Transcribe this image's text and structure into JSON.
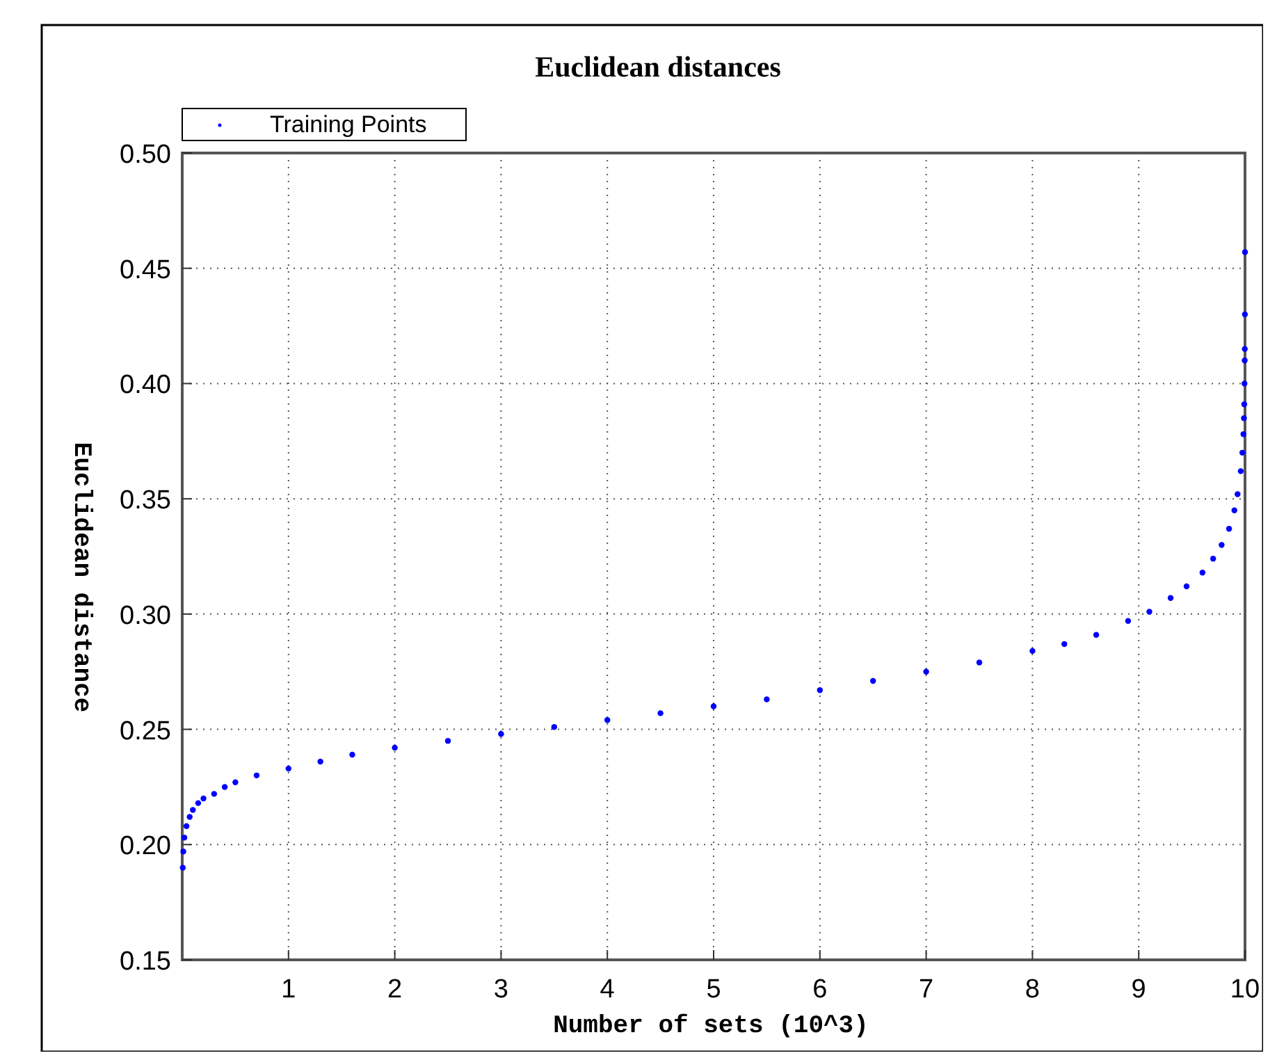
{
  "chart_data": {
    "type": "scatter",
    "title": "Euclidean distances",
    "xlabel": "Number of sets (10^3)",
    "ylabel": "Euclidean distance",
    "xlim": [
      0,
      10
    ],
    "xticks": [
      1,
      2,
      3,
      4,
      5,
      6,
      7,
      8,
      9,
      10
    ],
    "ylim": [
      0.15,
      0.5
    ],
    "yticks": [
      0.15,
      {
        "value": 0.2,
        "label": "0.20"
      },
      0.25,
      {
        "value": 0.3,
        "label": "0.30"
      },
      0.35,
      {
        "value": 0.4,
        "label": "0.40"
      },
      0.45,
      {
        "value": 0.5,
        "label": "0.50"
      }
    ],
    "grid": true,
    "legend": "top left",
    "marker": "circle",
    "series": [
      {
        "name": "Training Points",
        "color": "#0000ff",
        "x": [
          0.005,
          0.01,
          0.02,
          0.04,
          0.07,
          0.1,
          0.15,
          0.2,
          0.3,
          0.4,
          0.5,
          0.7,
          1,
          1.3,
          1.6,
          2,
          2.5,
          3,
          3.5,
          4,
          4.5,
          5,
          5.5,
          6,
          6.5,
          7,
          7.5,
          8,
          8.3,
          8.6,
          8.9,
          9.1,
          9.3,
          9.45,
          9.6,
          9.7,
          9.78,
          9.85,
          9.9,
          9.93,
          9.96,
          9.975,
          9.985,
          9.99,
          9.993,
          9.995,
          9.997,
          9.998,
          9.999,
          10
        ],
        "values": [
          0.19,
          0.197,
          0.203,
          0.208,
          0.212,
          0.215,
          0.218,
          0.22,
          0.222,
          0.225,
          0.227,
          0.23,
          0.233,
          0.236,
          0.239,
          0.242,
          0.245,
          0.248,
          0.251,
          0.254,
          0.257,
          0.26,
          0.263,
          0.267,
          0.271,
          0.275,
          0.279,
          0.284,
          0.287,
          0.291,
          0.297,
          0.301,
          0.307,
          0.312,
          0.318,
          0.324,
          0.33,
          0.337,
          0.345,
          0.352,
          0.362,
          0.37,
          0.378,
          0.385,
          0.391,
          0.4,
          0.41,
          0.415,
          0.43,
          0.457
        ]
      }
    ]
  }
}
